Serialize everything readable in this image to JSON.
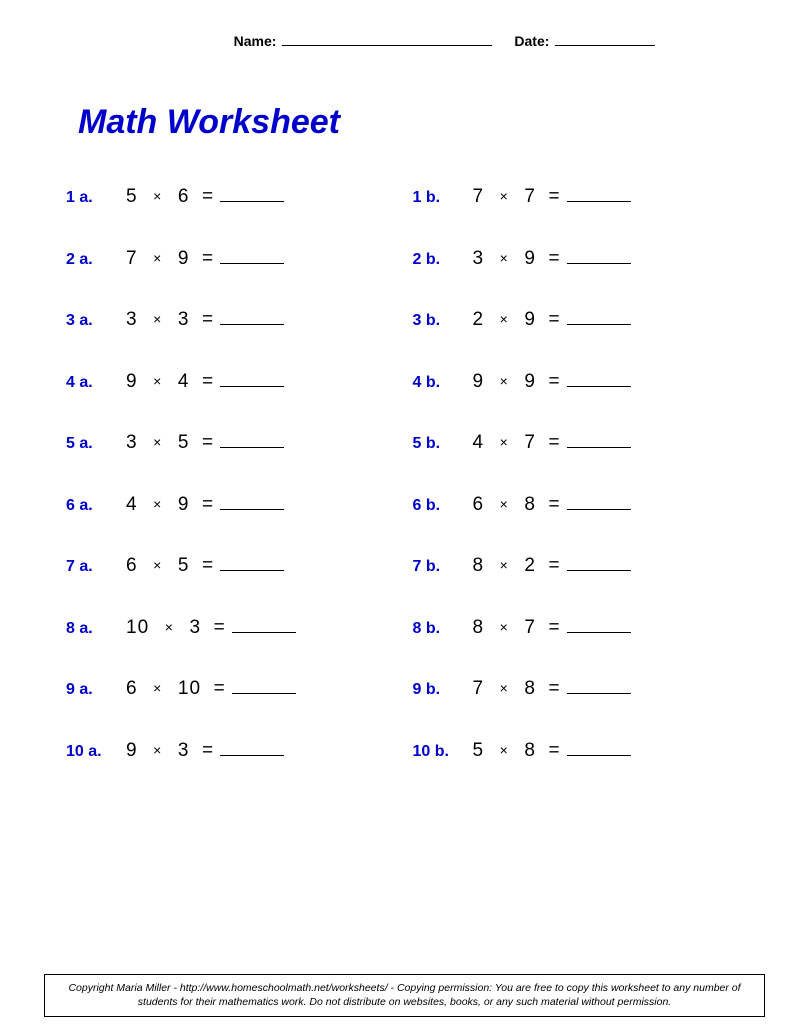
{
  "colors": {
    "page_bg": "#ffffff",
    "accent": "#0000cc",
    "text": "#000000"
  },
  "header": {
    "name_label": "Name:",
    "date_label": "Date:"
  },
  "title": "Math Worksheet",
  "operator": "×",
  "equals": "=",
  "problems": [
    {
      "label_a": "1 a.",
      "a1": "5",
      "a2": "6",
      "label_b": "1 b.",
      "b1": "7",
      "b2": "7"
    },
    {
      "label_a": "2 a.",
      "a1": "7",
      "a2": "9",
      "label_b": "2 b.",
      "b1": "3",
      "b2": "9"
    },
    {
      "label_a": "3 a.",
      "a1": "3",
      "a2": "3",
      "label_b": "3 b.",
      "b1": "2",
      "b2": "9"
    },
    {
      "label_a": "4 a.",
      "a1": "9",
      "a2": "4",
      "label_b": "4 b.",
      "b1": "9",
      "b2": "9"
    },
    {
      "label_a": "5 a.",
      "a1": "3",
      "a2": "5",
      "label_b": "5 b.",
      "b1": "4",
      "b2": "7"
    },
    {
      "label_a": "6 a.",
      "a1": "4",
      "a2": "9",
      "label_b": "6 b.",
      "b1": "6",
      "b2": "8"
    },
    {
      "label_a": "7 a.",
      "a1": "6",
      "a2": "5",
      "label_b": "7 b.",
      "b1": "8",
      "b2": "2"
    },
    {
      "label_a": "8 a.",
      "a1": "10",
      "a2": "3",
      "label_b": "8 b.",
      "b1": "8",
      "b2": "7"
    },
    {
      "label_a": "9 a.",
      "a1": "6",
      "a2": "10",
      "label_b": "9 b.",
      "b1": "7",
      "b2": "8"
    },
    {
      "label_a": "10 a.",
      "a1": "9",
      "a2": "3",
      "label_b": "10 b.",
      "b1": "5",
      "b2": "8"
    }
  ],
  "footer": "Copyright Maria Miller - http://www.homeschoolmath.net/worksheets/ - Copying permission: You are free to copy this worksheet to any number of students for their mathematics work. Do not distribute on websites, books, or any such material without permission."
}
